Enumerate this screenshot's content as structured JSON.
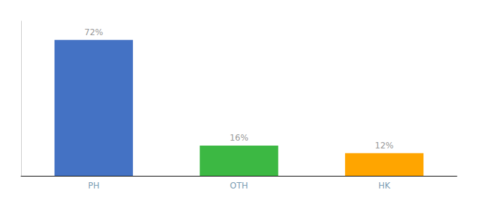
{
  "chart_data": {
    "type": "bar",
    "categories": [
      "PH",
      "OTH",
      "HK"
    ],
    "values": [
      72,
      16,
      12
    ],
    "value_labels": [
      "72%",
      "16%",
      "12%"
    ],
    "data_labels": true,
    "colors": [
      "#4472C4",
      "#3CB843",
      "#FFA500"
    ],
    "ylim": [
      0,
      82
    ],
    "grid": false,
    "tick_labels": "x"
  }
}
